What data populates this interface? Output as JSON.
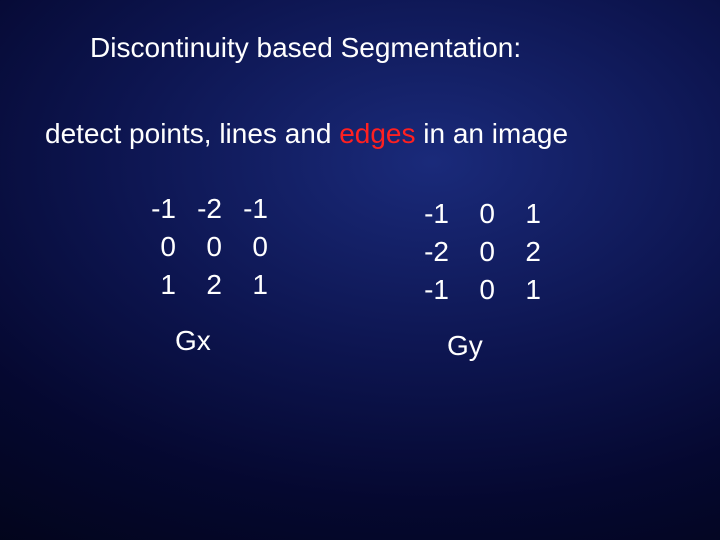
{
  "title": "Discontinuity based Segmentation:",
  "subtitle_pre": "detect points, lines and ",
  "subtitle_edges": "edges",
  "subtitle_post": " in an image",
  "colors": {
    "background_center": "#1a2a7a",
    "background_mid": "#0d1550",
    "background_outer": "#020418",
    "text": "#ffffff",
    "highlight": "#ff2020"
  },
  "typography": {
    "font_family": "Arial",
    "title_fontsize": 28,
    "body_fontsize": 28,
    "matrix_fontsize": 28
  },
  "gx": {
    "label": "Gx",
    "rows": [
      [
        "-1",
        "-2",
        "-1"
      ],
      [
        "0",
        "0",
        "0"
      ],
      [
        "1",
        "2",
        "1"
      ]
    ]
  },
  "gy": {
    "label": "Gy",
    "rows": [
      [
        "-1",
        "0",
        "1"
      ],
      [
        "-2",
        "0",
        "2"
      ],
      [
        "-1",
        "0",
        "1"
      ]
    ]
  }
}
